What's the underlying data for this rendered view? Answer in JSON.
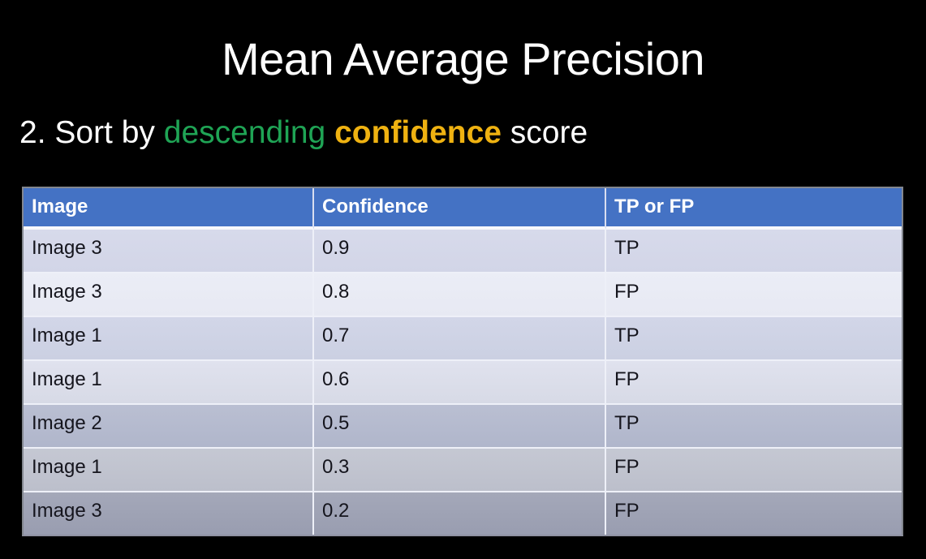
{
  "title": "Mean Average Precision",
  "subtitle": {
    "prefix": "2. Sort by ",
    "descending": "descending ",
    "confidence": "confidence",
    "suffix": " score"
  },
  "table": {
    "headers": [
      "Image",
      "Confidence",
      "TP or FP"
    ],
    "rows": [
      {
        "image": "Image 3",
        "confidence": "0.9",
        "tp_fp": "TP"
      },
      {
        "image": "Image 3",
        "confidence": "0.8",
        "tp_fp": "FP"
      },
      {
        "image": "Image 1",
        "confidence": "0.7",
        "tp_fp": "TP"
      },
      {
        "image": "Image 1",
        "confidence": "0.6",
        "tp_fp": "FP"
      },
      {
        "image": "Image 2",
        "confidence": "0.5",
        "tp_fp": "TP"
      },
      {
        "image": "Image 1",
        "confidence": "0.3",
        "tp_fp": "FP"
      },
      {
        "image": "Image 3",
        "confidence": "0.2",
        "tp_fp": "FP"
      }
    ]
  },
  "colors": {
    "background": "#000000",
    "title_text": "#ffffff",
    "highlight_green": "#1fa455",
    "highlight_gold": "#efb211",
    "table_header_bg": "#4472c4",
    "table_header_text": "#ffffff",
    "table_cell_text": "#15151d",
    "row_shades": [
      "#d5d8ea",
      "#e9ebf5",
      "#cfd4e6",
      "#dcdfeb",
      "#b5bbcf",
      "#c1c4d0",
      "#9fa3b5"
    ]
  }
}
